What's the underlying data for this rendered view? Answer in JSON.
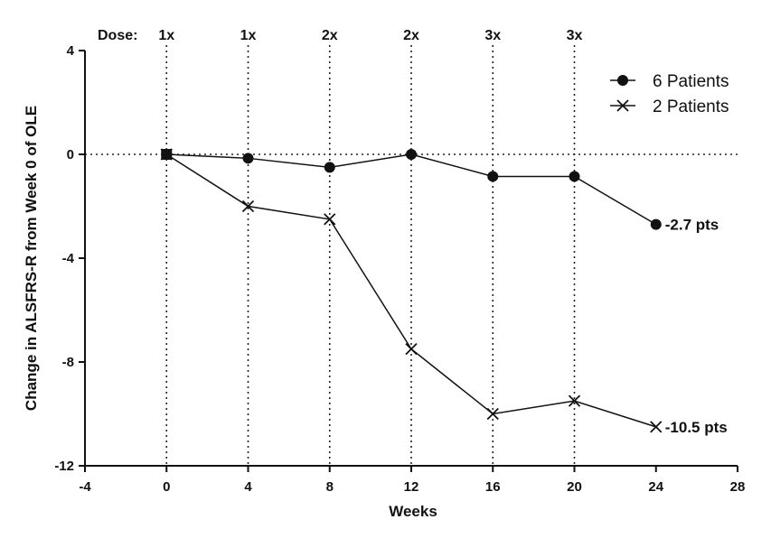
{
  "chart_data": {
    "type": "line",
    "xlabel": "Weeks",
    "ylabel": "Change in ALSFRS-R from Week 0 of OLE",
    "xlim": [
      -4,
      28
    ],
    "ylim": [
      -12,
      4
    ],
    "x_ticks": [
      "-4",
      "0",
      "4",
      "8",
      "12",
      "16",
      "20",
      "24",
      "28"
    ],
    "y_ticks": [
      "4",
      "0",
      "-4",
      "-8",
      "-12"
    ],
    "x_tick_values": [
      -4,
      0,
      4,
      8,
      12,
      16,
      20,
      24,
      28
    ],
    "y_tick_values": [
      4,
      0,
      -4,
      -8,
      -12
    ],
    "dose_header": "Dose:",
    "doses": [
      {
        "week": 0,
        "label": "1x"
      },
      {
        "week": 4,
        "label": "1x"
      },
      {
        "week": 8,
        "label": "2x"
      },
      {
        "week": 12,
        "label": "2x"
      },
      {
        "week": 16,
        "label": "3x"
      },
      {
        "week": 20,
        "label": "3x"
      }
    ],
    "series": [
      {
        "name": "6 Patients",
        "marker": "circle",
        "x": [
          0,
          4,
          8,
          12,
          16,
          20,
          24
        ],
        "y": [
          0,
          -0.15,
          -0.5,
          0,
          -0.85,
          -0.85,
          -2.7
        ],
        "end_label": "-2.7 pts"
      },
      {
        "name": "2 Patients",
        "marker": "x",
        "x": [
          0,
          4,
          8,
          12,
          16,
          20,
          24
        ],
        "y": [
          0,
          -2.0,
          -2.5,
          -7.5,
          -10.0,
          -9.5,
          -10.5
        ],
        "end_label": "-10.5 pts"
      }
    ],
    "zero_line": true,
    "legend": "top-right",
    "grid": false
  }
}
